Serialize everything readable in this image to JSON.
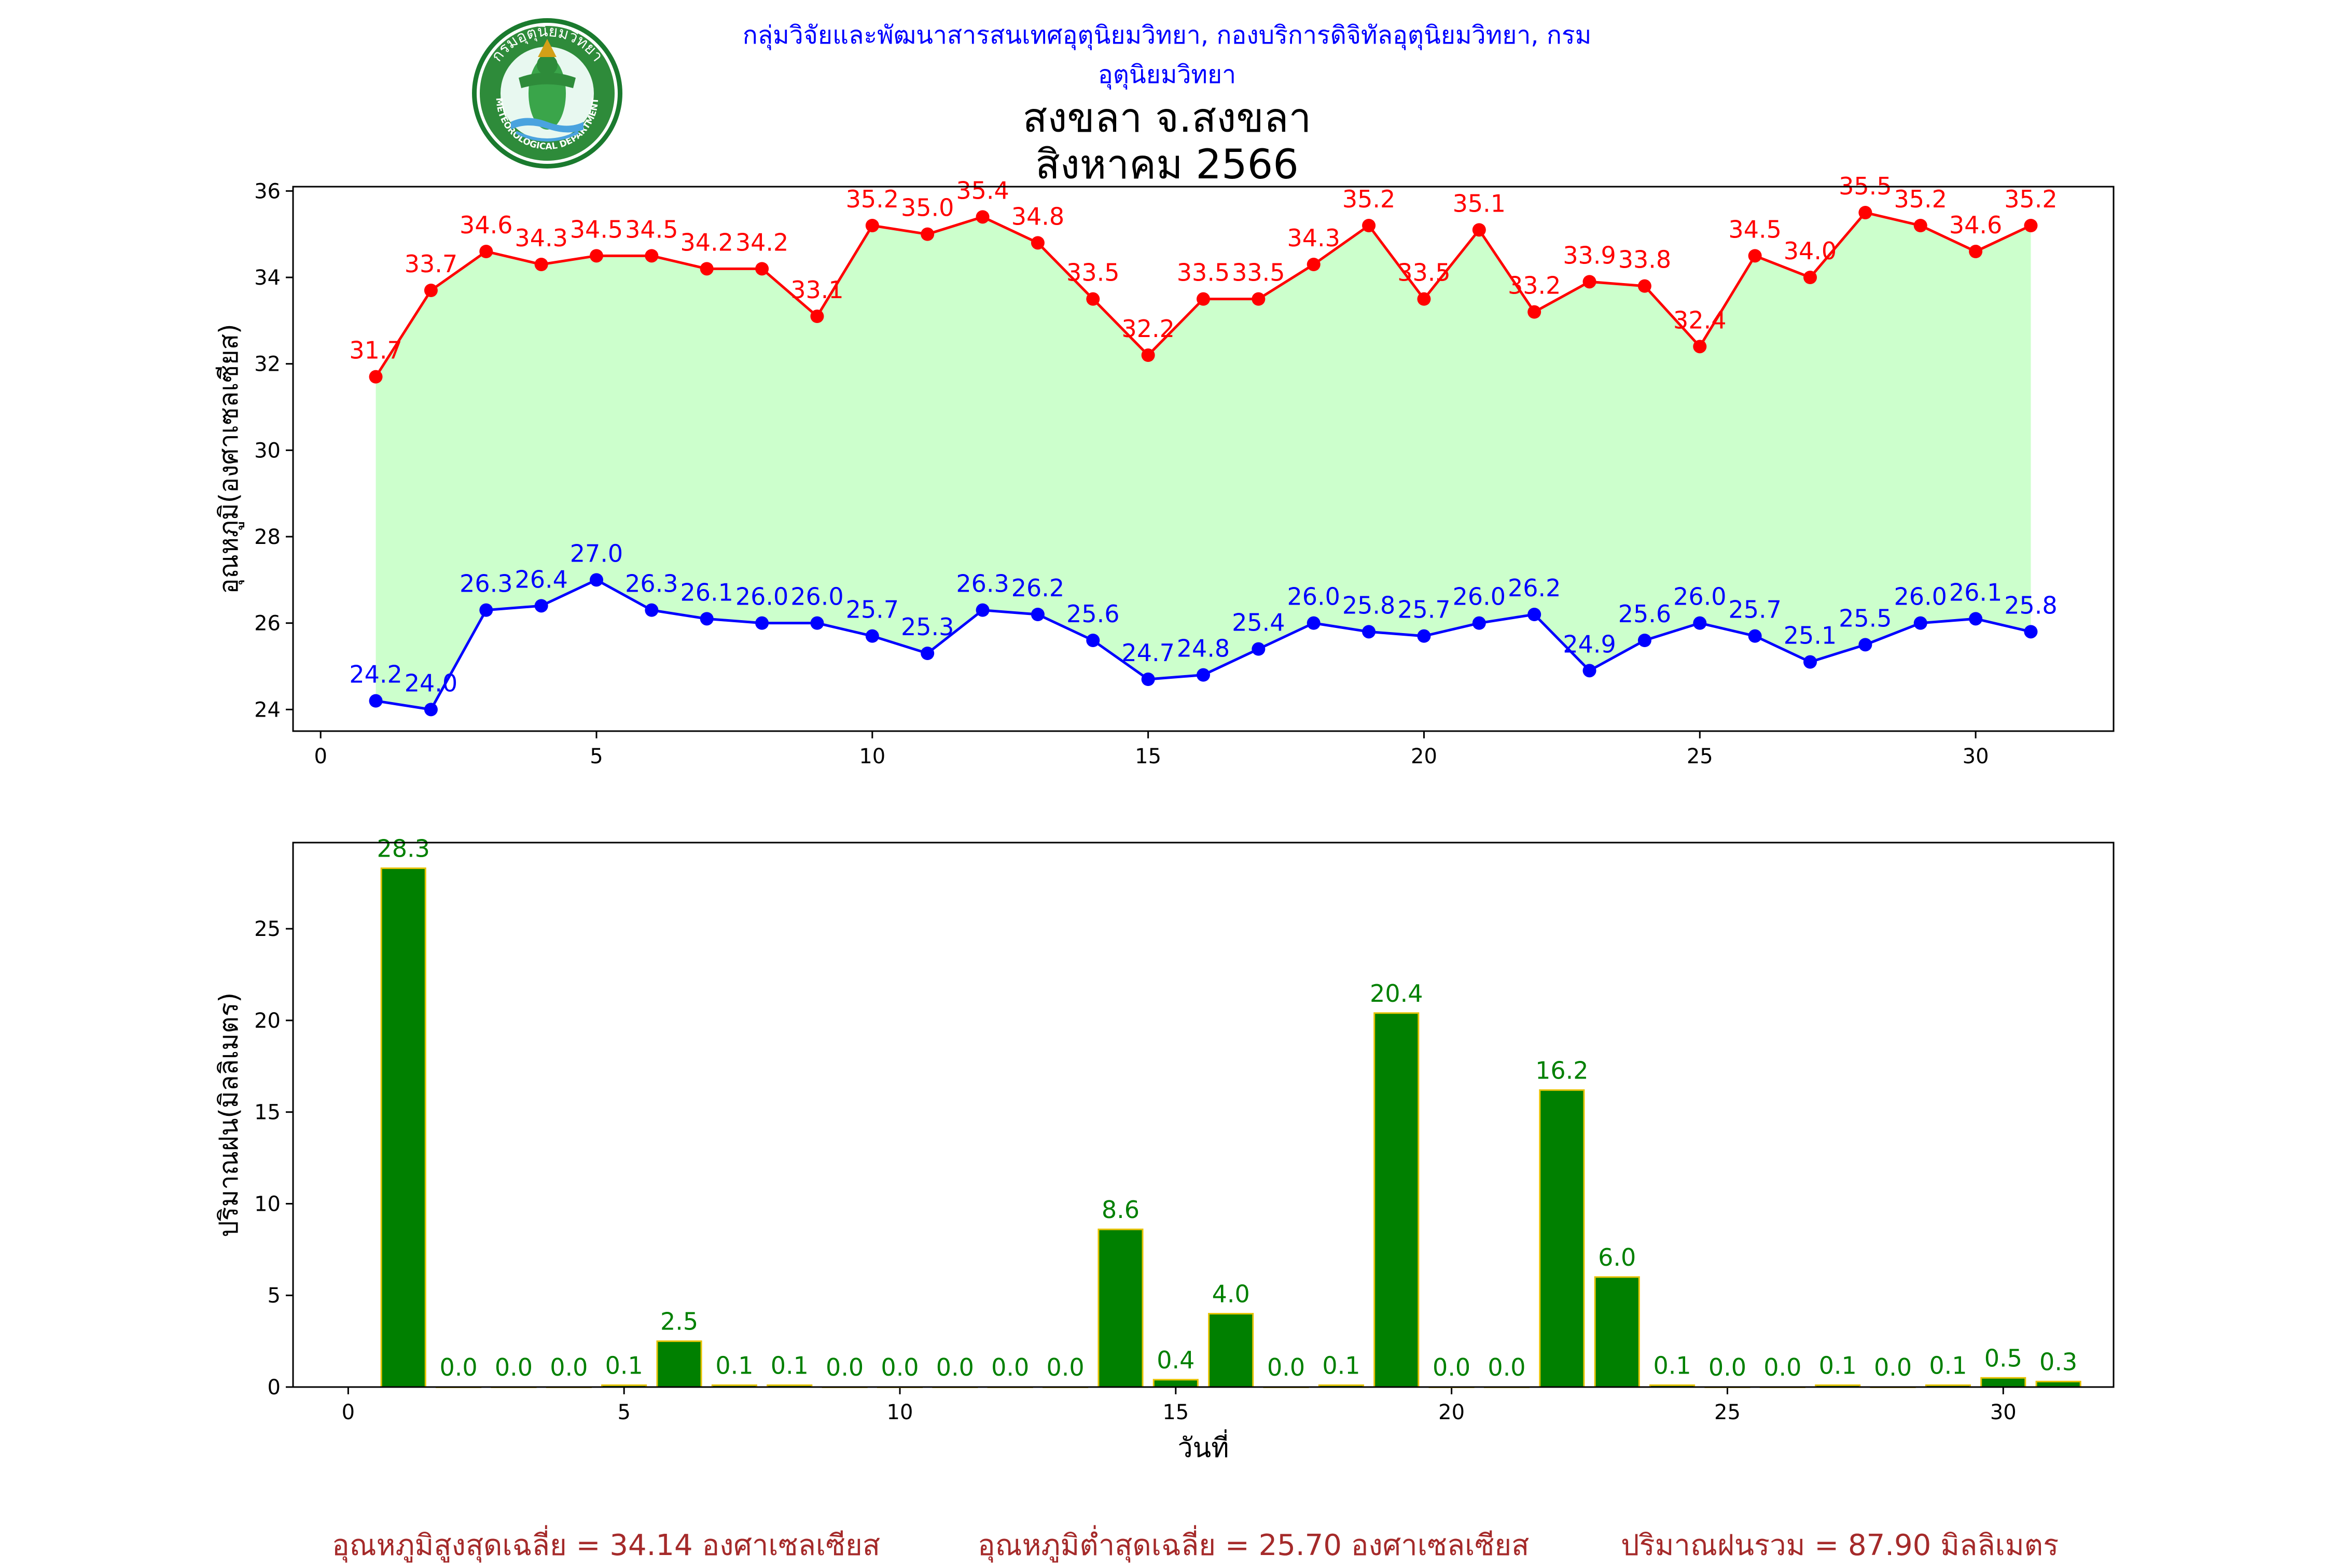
{
  "header": {
    "agency_line": "กลุ่มวิจัยและพัฒนาสารสนเทศอุตุนิยมวิทยา, กองบริการดิจิทัลอุตุนิยมวิทยา, กรมอุตุนิยมวิทยา",
    "logo_text_top": "กรมอุตุนิยมวิทยา",
    "logo_text_bottom": "METEOROLOGICAL DEPARTMENT",
    "title_line1": "สงขลา จ.สงขลา",
    "title_line2": "สิงหาคม 2566"
  },
  "summary": {
    "avg_max": "อุณหภูมิสูงสุดเฉลี่ย = 34.14 องศาเซลเซียส",
    "avg_min": "อุณหภูมิต่ำสุดเฉลี่ย = 25.70 องศาเซลเซียส",
    "total_rain": "ปริมาณฝนรวม = 87.90 มิลลิเมตร"
  },
  "colors": {
    "max_line": "#ff0000",
    "min_line": "#0000ff",
    "fill": "#ccffcc",
    "bar_fill": "#008000",
    "bar_edge": "#e6c200",
    "bar_label": "#008000",
    "summary_text": "#a52a2a",
    "header_text": "#0000ff"
  },
  "chart_data": [
    {
      "type": "line",
      "ylabel": "อุณหภูมิ(องศาเซลเซียส)",
      "xlim": [
        -0.5,
        32.5
      ],
      "ylim": [
        23.5,
        36.1
      ],
      "xticks": [
        0,
        5,
        10,
        15,
        20,
        25,
        30
      ],
      "yticks": [
        24,
        26,
        28,
        30,
        32,
        34,
        36
      ],
      "x": [
        1,
        2,
        3,
        4,
        5,
        6,
        7,
        8,
        9,
        10,
        11,
        12,
        13,
        14,
        15,
        16,
        17,
        18,
        19,
        20,
        21,
        22,
        23,
        24,
        25,
        26,
        27,
        28,
        29,
        30,
        31
      ],
      "series": [
        {
          "key": "max",
          "values": [
            31.7,
            33.7,
            34.6,
            34.3,
            34.5,
            34.5,
            34.2,
            34.2,
            33.1,
            35.2,
            35.0,
            35.4,
            34.8,
            33.5,
            32.2,
            33.5,
            33.5,
            34.3,
            35.2,
            33.5,
            35.1,
            33.2,
            33.9,
            33.8,
            32.4,
            34.5,
            34.0,
            35.5,
            35.2,
            34.6,
            35.2
          ]
        },
        {
          "key": "min",
          "values": [
            24.2,
            24.0,
            26.3,
            26.4,
            27.0,
            26.3,
            26.1,
            26.0,
            26.0,
            25.7,
            25.3,
            26.3,
            26.2,
            25.6,
            24.7,
            24.8,
            25.4,
            26.0,
            25.8,
            25.7,
            26.0,
            26.2,
            24.9,
            25.6,
            26.0,
            25.7,
            25.1,
            25.5,
            26.0,
            26.1,
            25.8
          ]
        }
      ]
    },
    {
      "type": "bar",
      "xlabel": "วันที่",
      "ylabel": "ปริมาณฝน(มิลลิเมตร)",
      "xlim": [
        -1,
        32
      ],
      "ylim": [
        0,
        29.7
      ],
      "xticks": [
        0,
        5,
        10,
        15,
        20,
        25,
        30
      ],
      "yticks": [
        0,
        5,
        10,
        15,
        20,
        25
      ],
      "x": [
        1,
        2,
        3,
        4,
        5,
        6,
        7,
        8,
        9,
        10,
        11,
        12,
        13,
        14,
        15,
        16,
        17,
        18,
        19,
        20,
        21,
        22,
        23,
        24,
        25,
        26,
        27,
        28,
        29,
        30,
        31
      ],
      "values": [
        28.3,
        0.0,
        0.0,
        0.0,
        0.1,
        2.5,
        0.1,
        0.1,
        0.0,
        0.0,
        0.0,
        0.0,
        0.0,
        8.6,
        0.4,
        4.0,
        0.0,
        0.1,
        20.4,
        0.0,
        0.0,
        16.2,
        6.0,
        0.1,
        0.0,
        0.0,
        0.1,
        0.0,
        0.1,
        0.5,
        0.3
      ]
    }
  ]
}
